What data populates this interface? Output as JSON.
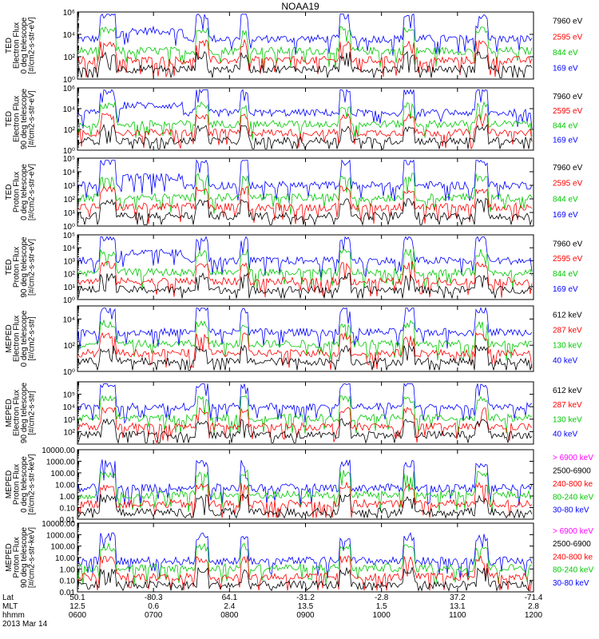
{
  "title": "NOAA19",
  "colors": {
    "blue": "#0000ff",
    "red": "#ff0000",
    "green": "#00c800",
    "black": "#000000",
    "magenta": "#ff00ff"
  },
  "chart_data": [
    {
      "type": "scatter",
      "ylabel": [
        "TED",
        "Electron Flux",
        "0 deg telescope",
        "[#/cm2-s-str-eV]"
      ],
      "yscale": "log",
      "ylim": [
        1,
        1000000
      ],
      "ytick_values": [
        1,
        100,
        10000,
        1000000
      ],
      "ytick_labels": [
        "10⁰",
        "10²",
        "10⁴",
        "10⁶"
      ],
      "legend": [
        {
          "label": "7960 eV",
          "color": "#000000"
        },
        {
          "label": "2595 eV",
          "color": "#ff0000"
        },
        {
          "label": "844 eV",
          "color": "#00c800"
        },
        {
          "label": "169 eV",
          "color": "#0000ff"
        }
      ]
    },
    {
      "type": "scatter",
      "ylabel": [
        "TED",
        "Electron Flux",
        "90 deg telescope",
        "[#/cm2-s-str-eV]"
      ],
      "yscale": "log",
      "ylim": [
        1,
        1000000
      ],
      "ytick_values": [
        1,
        100,
        10000,
        1000000
      ],
      "ytick_labels": [
        "10⁰",
        "10²",
        "10⁴",
        "10⁶"
      ],
      "legend": [
        {
          "label": "7960 eV",
          "color": "#000000"
        },
        {
          "label": "2595 eV",
          "color": "#ff0000"
        },
        {
          "label": "844 eV",
          "color": "#00c800"
        },
        {
          "label": "169 eV",
          "color": "#0000ff"
        }
      ]
    },
    {
      "type": "scatter",
      "ylabel": [
        "TED",
        "Proton Flux",
        "0 deg telescope",
        "[#/cm2-s-str-eV]"
      ],
      "yscale": "log",
      "ylim": [
        1,
        100000
      ],
      "ytick_values": [
        1,
        10,
        100,
        1000,
        10000,
        100000
      ],
      "ytick_labels": [
        "10⁰",
        "10¹",
        "10²",
        "10³",
        "10⁴",
        "10⁵"
      ],
      "legend": [
        {
          "label": "7960 eV",
          "color": "#000000"
        },
        {
          "label": "2595 eV",
          "color": "#ff0000"
        },
        {
          "label": "844 eV",
          "color": "#00c800"
        },
        {
          "label": "169 eV",
          "color": "#0000ff"
        }
      ]
    },
    {
      "type": "scatter",
      "ylabel": [
        "TED",
        "Proton Flux",
        "90 deg telescope",
        "[#/cm2-s-str-eV]"
      ],
      "yscale": "log",
      "ylim": [
        1,
        100000
      ],
      "ytick_values": [
        1,
        10,
        100,
        1000,
        10000,
        100000
      ],
      "ytick_labels": [
        "10⁰",
        "10¹",
        "10²",
        "10³",
        "10⁴",
        "10⁵"
      ],
      "legend": [
        {
          "label": "7960 eV",
          "color": "#000000"
        },
        {
          "label": "2595 eV",
          "color": "#ff0000"
        },
        {
          "label": "844 eV",
          "color": "#00c800"
        },
        {
          "label": "169 eV",
          "color": "#0000ff"
        }
      ]
    },
    {
      "type": "scatter",
      "ylabel": [
        "MEPED",
        "Electron Flux",
        "0 deg telescope",
        "[#/cm2-s-str]"
      ],
      "yscale": "log",
      "ylim": [
        1,
        100000
      ],
      "ytick_values": [
        1,
        100,
        10000
      ],
      "ytick_labels": [
        "10⁰",
        "10²",
        "10⁴"
      ],
      "legend": [
        {
          "label": "612 keV",
          "color": "#000000"
        },
        {
          "label": "287 keV",
          "color": "#ff0000"
        },
        {
          "label": "130 keV",
          "color": "#00c800"
        },
        {
          "label": "40 keV",
          "color": "#0000ff"
        }
      ]
    },
    {
      "type": "scatter",
      "ylabel": [
        "MEPED",
        "Electron Flux",
        "90 deg telescope",
        "[#/cm2-s-str]"
      ],
      "yscale": "log",
      "ylim": [
        10,
        1000000
      ],
      "ytick_values": [
        100,
        1000,
        10000,
        100000
      ],
      "ytick_labels": [
        "10²",
        "10³",
        "10⁴",
        "10⁵"
      ],
      "legend": [
        {
          "label": "612 keV",
          "color": "#000000"
        },
        {
          "label": "287 keV",
          "color": "#ff0000"
        },
        {
          "label": "130 keV",
          "color": "#00c800"
        },
        {
          "label": "40 keV",
          "color": "#0000ff"
        }
      ]
    },
    {
      "type": "scatter",
      "ylabel": [
        "MEPED",
        "Proton Flux",
        "0 deg telescope",
        "[#/cm2-s-str-keV]"
      ],
      "yscale": "log",
      "ylim": [
        0.01,
        10000
      ],
      "ytick_values": [
        0.01,
        0.1,
        1,
        10,
        100,
        1000,
        10000
      ],
      "ytick_labels": [
        "0.01",
        "0.10",
        "1.00",
        "10.00",
        "100.00",
        "1000.00",
        "10000.00"
      ],
      "legend": [
        {
          "label": "> 6900 keV",
          "color": "#ff00ff"
        },
        {
          "label": "2500-6900",
          "color": "#000000"
        },
        {
          "label": "240-800 ke",
          "color": "#ff0000"
        },
        {
          "label": "80-240 keV",
          "color": "#00c800"
        },
        {
          "label": "30-80 keV",
          "color": "#0000ff"
        }
      ]
    },
    {
      "type": "scatter",
      "ylabel": [
        "MEPED",
        "Proton Flux",
        "90 deg telescope",
        "[#/cm2-s-str-keV]"
      ],
      "yscale": "log",
      "ylim": [
        0.01,
        10000
      ],
      "ytick_values": [
        0.01,
        0.1,
        1,
        10,
        100,
        1000,
        10000
      ],
      "ytick_labels": [
        "0.01",
        "0.10",
        "1.00",
        "10.00",
        "100.00",
        "1000.00",
        "10000.00"
      ],
      "legend": [
        {
          "label": "> 6900 keV",
          "color": "#ff00ff"
        },
        {
          "label": "2500-6900",
          "color": "#000000"
        },
        {
          "label": "240-800 ke",
          "color": "#ff0000"
        },
        {
          "label": "80-240 keV",
          "color": "#00c800"
        },
        {
          "label": "30-80 keV",
          "color": "#0000ff"
        }
      ]
    }
  ],
  "xaxis": {
    "row_labels": [
      "Lat",
      "MLT",
      "hhmm"
    ],
    "date_label": "2013 Mar 14",
    "ticks": [
      {
        "lat": "50.1",
        "mlt": "12.5",
        "hhmm": "0600"
      },
      {
        "lat": "-80.3",
        "mlt": "0.6",
        "hhmm": "0700"
      },
      {
        "lat": "64.1",
        "mlt": "2.4",
        "hhmm": "0800"
      },
      {
        "lat": "-31.2",
        "mlt": "13.5",
        "hhmm": "0900"
      },
      {
        "lat": "-2.8",
        "mlt": "1.5",
        "hhmm": "1000"
      },
      {
        "lat": "37.2",
        "mlt": "13.1",
        "hhmm": "1100"
      },
      {
        "lat": "-71.4",
        "mlt": "2.8",
        "hhmm": "1200"
      }
    ]
  }
}
